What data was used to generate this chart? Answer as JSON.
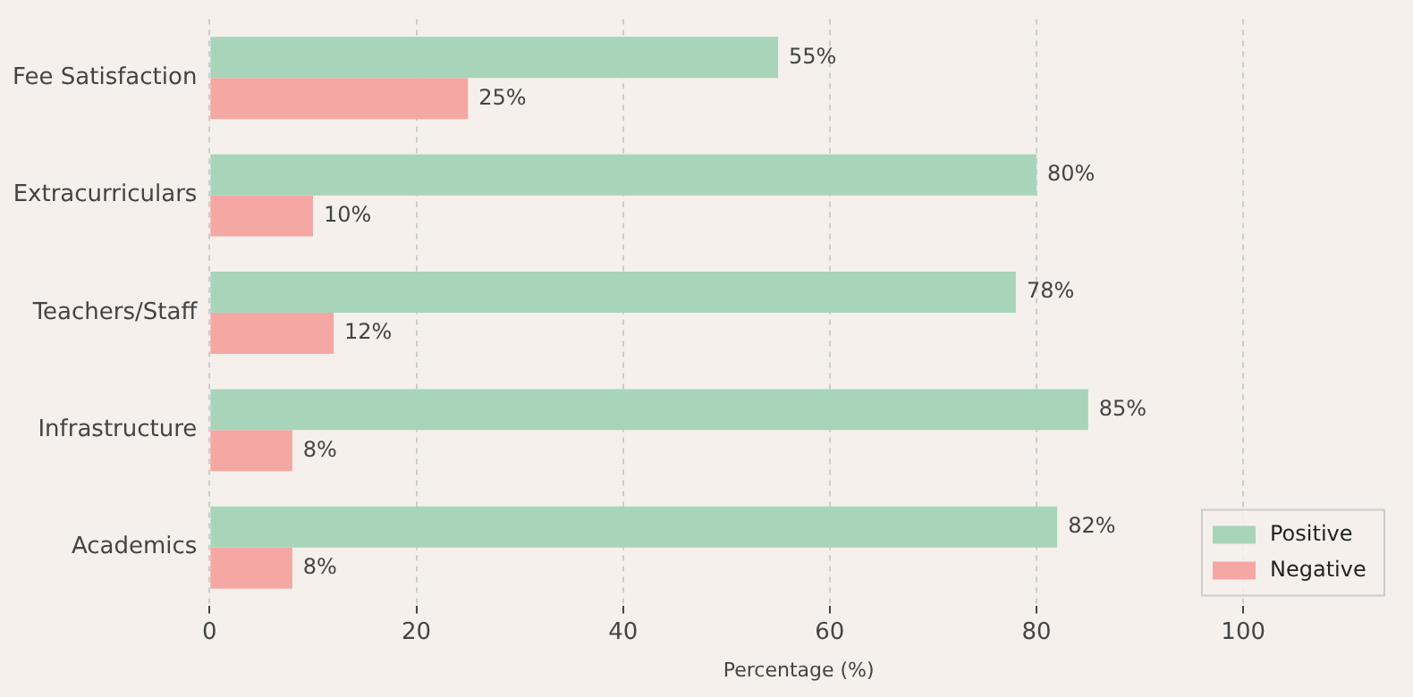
{
  "chart_data": {
    "type": "bar",
    "orientation": "horizontal",
    "xlabel": "Percentage (%)",
    "categories": [
      "Fee Satisfaction",
      "Extracurriculars",
      "Teachers/Staff",
      "Infrastructure",
      "Academics"
    ],
    "series": [
      {
        "name": "Positive",
        "color": "#a8d5ba",
        "values": [
          55,
          80,
          78,
          85,
          82
        ],
        "value_labels": [
          "55%",
          "80%",
          "78%",
          "85%",
          "82%"
        ]
      },
      {
        "name": "Negative",
        "color": "#f4a7a3",
        "values": [
          25,
          10,
          12,
          8,
          8
        ],
        "value_labels": [
          "25%",
          "10%",
          "12%",
          "8%",
          "8%"
        ]
      }
    ],
    "xlim": [
      0,
      114
    ],
    "xticks": [
      0,
      20,
      40,
      60,
      80,
      100
    ],
    "grid": "x",
    "legend": "bottom right"
  }
}
